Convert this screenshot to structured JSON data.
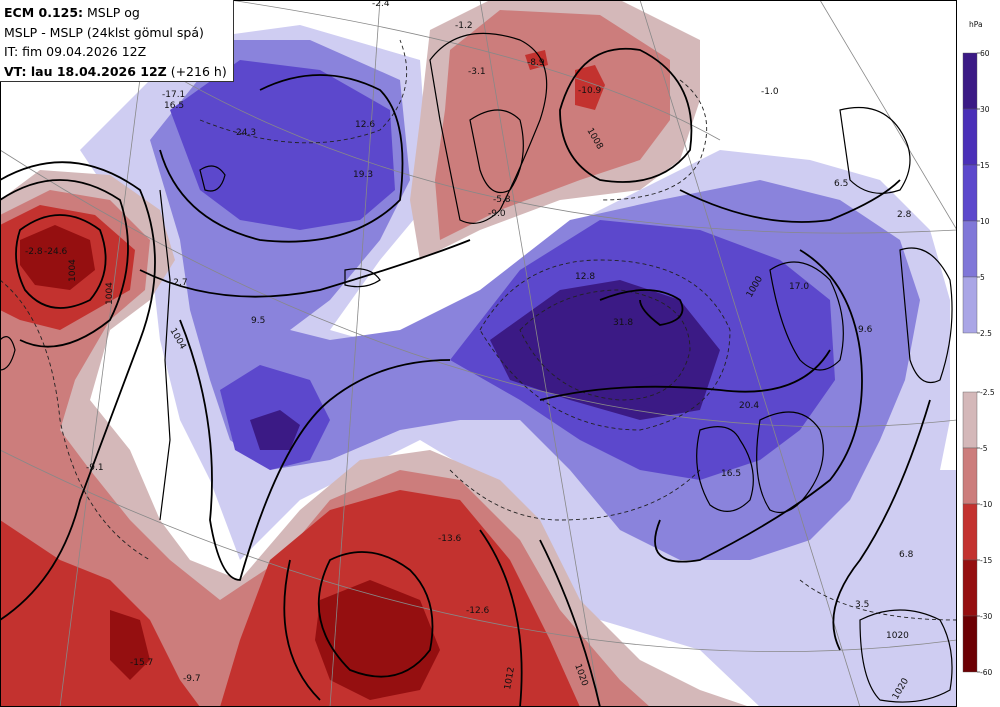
{
  "header": {
    "line1_bold": "ECM 0.125:",
    "line1_rest": " MSLP og",
    "line2": "MSLP - MSLP (24klst gömul spá)",
    "line3": "IT: fim 09.04.2026 12Z",
    "line4_bold": "VT: lau 18.04.2026 12Z",
    "line4_rest": " (+216 h)"
  },
  "legend": {
    "unit": "hPa",
    "positive_ticks": [
      "60",
      "30",
      "15",
      "10",
      "5",
      "2.5"
    ],
    "negative_ticks": [
      "-2.5",
      "-5",
      "-10",
      "-15",
      "-30",
      "-60"
    ],
    "positive_colors": [
      "#3b1a85",
      "#4a2fb8",
      "#5c48cc",
      "#8077d8",
      "#aaa6e6",
      "#cfcdf2"
    ],
    "negative_colors": [
      "#d4b8b9",
      "#cc7d7c",
      "#c3322f",
      "#950f10",
      "#6c0003",
      "#5a0000"
    ]
  },
  "map": {
    "colors": {
      "blue_light": "#cfcdf2",
      "blue_mid": "#8a83dc",
      "blue_dark": "#5c48cc",
      "blue_deep": "#3b1a85",
      "red_light": "#d4b8b9",
      "red_mid": "#cc7d7c",
      "red_dark": "#c3322f",
      "red_deep": "#950f10"
    },
    "value_labels": [
      "-2.4",
      "-1.2",
      "-3.1",
      "-8.9",
      "-10.9",
      "-1.0",
      "-17.1",
      "16.5",
      "24.3",
      "12.6",
      "19.3",
      "-9.0",
      "-5.8",
      "-2.8",
      "-24.6",
      "-2.7",
      "9.5",
      "12.8",
      "31.8",
      "17.0",
      "6.5",
      "2.8",
      "9.6",
      "20.4",
      "16.5",
      "-9.1",
      "-13.6",
      "-12.6",
      "-15.7",
      "-9.7",
      "6.8",
      "3.5"
    ],
    "isobar_labels": [
      "1004",
      "1004",
      "1008",
      "1000",
      "1004",
      "1012",
      "1020",
      "1020",
      "1020"
    ]
  }
}
